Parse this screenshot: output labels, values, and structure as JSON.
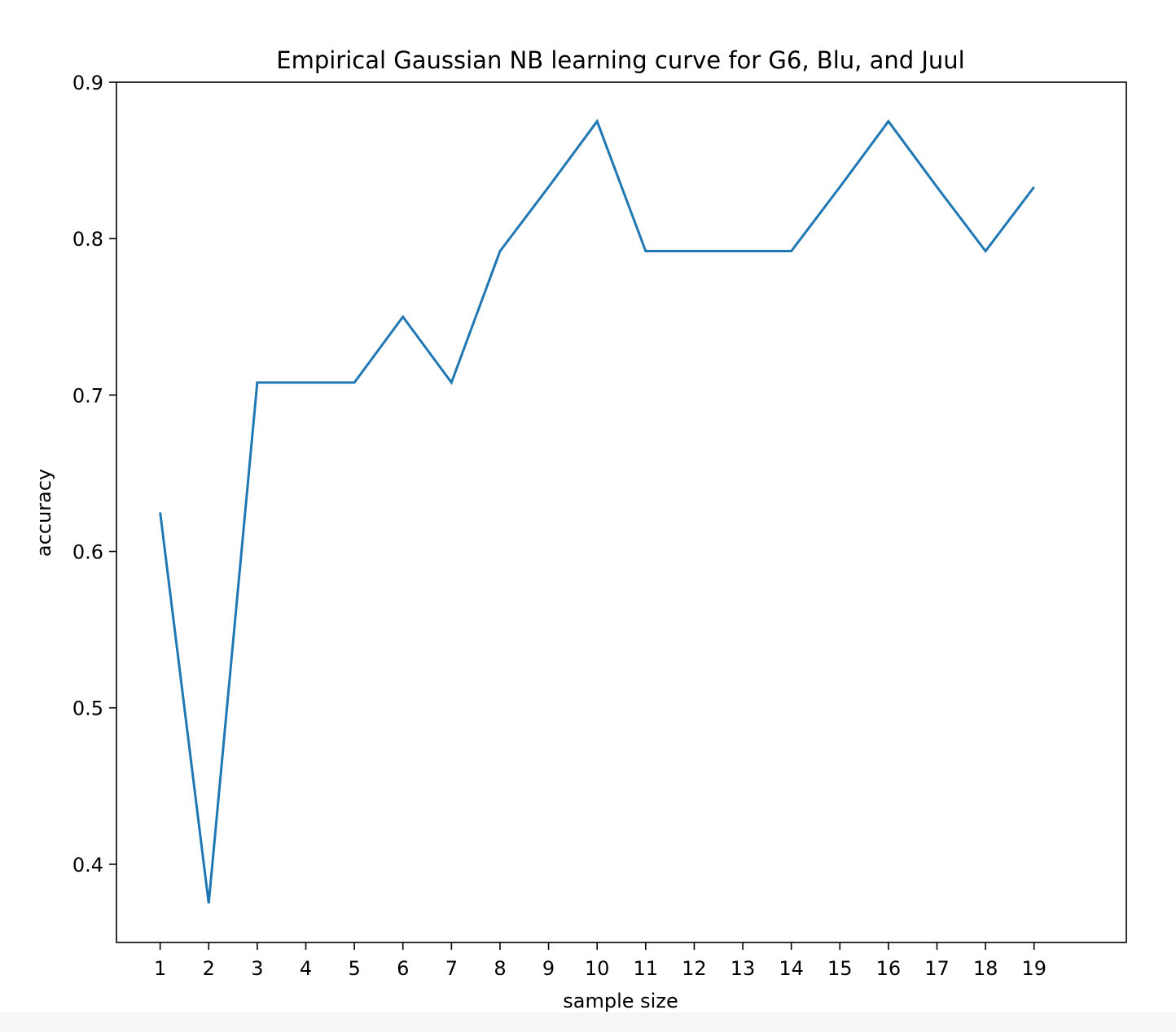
{
  "chart_data": {
    "type": "line",
    "title": "Empirical Gaussian NB learning curve for G6, Blu, and Juul",
    "xlabel": "sample size",
    "ylabel": "accuracy",
    "x": [
      1,
      2,
      3,
      4,
      5,
      6,
      7,
      8,
      9,
      10,
      11,
      12,
      13,
      14,
      15,
      16,
      17,
      18,
      19
    ],
    "x_tick_labels": [
      "1",
      "2",
      "3",
      "4",
      "5",
      "6",
      "7",
      "8",
      "9",
      "10",
      "11",
      "12",
      "13",
      "14",
      "15",
      "16",
      "17",
      "18",
      "19"
    ],
    "y_tick_values": [
      0.4,
      0.5,
      0.6,
      0.7,
      0.8,
      0.9
    ],
    "y_tick_labels": [
      "0.4",
      "0.5",
      "0.6",
      "0.7",
      "0.8",
      "0.9"
    ],
    "xlim": [
      0.1,
      20.9
    ],
    "ylim": [
      0.35,
      0.9
    ],
    "grid": false,
    "legend": "none",
    "series": [
      {
        "color": "#1f77b4",
        "values": [
          0.625,
          0.375,
          0.708,
          0.708,
          0.708,
          0.75,
          0.708,
          0.792,
          0.833,
          0.875,
          0.792,
          0.792,
          0.792,
          0.792,
          0.833,
          0.875,
          0.833,
          0.792,
          0.833
        ]
      }
    ]
  }
}
